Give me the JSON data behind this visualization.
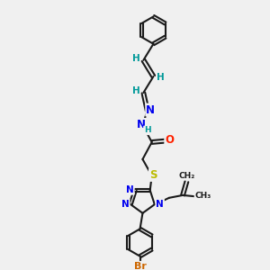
{
  "bg_color": "#f0f0f0",
  "line_color": "#1a1a1a",
  "N_color": "#0000ee",
  "O_color": "#ff2200",
  "S_color": "#bbbb00",
  "Br_color": "#cc6600",
  "H_color": "#009999",
  "figsize": [
    3.0,
    3.0
  ],
  "dpi": 100,
  "xlim": [
    0,
    10
  ],
  "ylim": [
    0,
    10
  ]
}
